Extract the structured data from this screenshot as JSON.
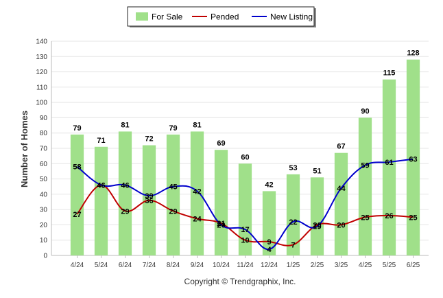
{
  "chart_data": {
    "type": "bar",
    "categories": [
      "4/24",
      "5/24",
      "6/24",
      "7/24",
      "8/24",
      "9/24",
      "10/24",
      "11/24",
      "12/24",
      "1/25",
      "2/25",
      "3/25",
      "4/25",
      "5/25",
      "6/25"
    ],
    "series": [
      {
        "name": "For Sale",
        "type": "bar",
        "color": "#a0e08a",
        "values": [
          79,
          71,
          81,
          72,
          79,
          81,
          69,
          60,
          42,
          53,
          51,
          67,
          90,
          115,
          128
        ]
      },
      {
        "name": "Pended",
        "type": "line",
        "color": "#c00000",
        "values": [
          27,
          46,
          29,
          36,
          29,
          24,
          21,
          10,
          9,
          7,
          20,
          20,
          25,
          26,
          25
        ]
      },
      {
        "name": "New Listing",
        "type": "line",
        "color": "#0000cc",
        "values": [
          58,
          46,
          46,
          39,
          45,
          42,
          20,
          17,
          4,
          22,
          19,
          44,
          59,
          61,
          63
        ]
      }
    ],
    "ylabel": "Number of Homes",
    "ylim": [
      0,
      140
    ],
    "yticks": [
      0,
      10,
      20,
      30,
      40,
      50,
      60,
      70,
      80,
      90,
      100,
      110,
      120,
      130,
      140
    ],
    "grid": true,
    "legend": "top-center"
  },
  "footer": {
    "copyright": "Copyright © Trendgraphix, Inc."
  }
}
